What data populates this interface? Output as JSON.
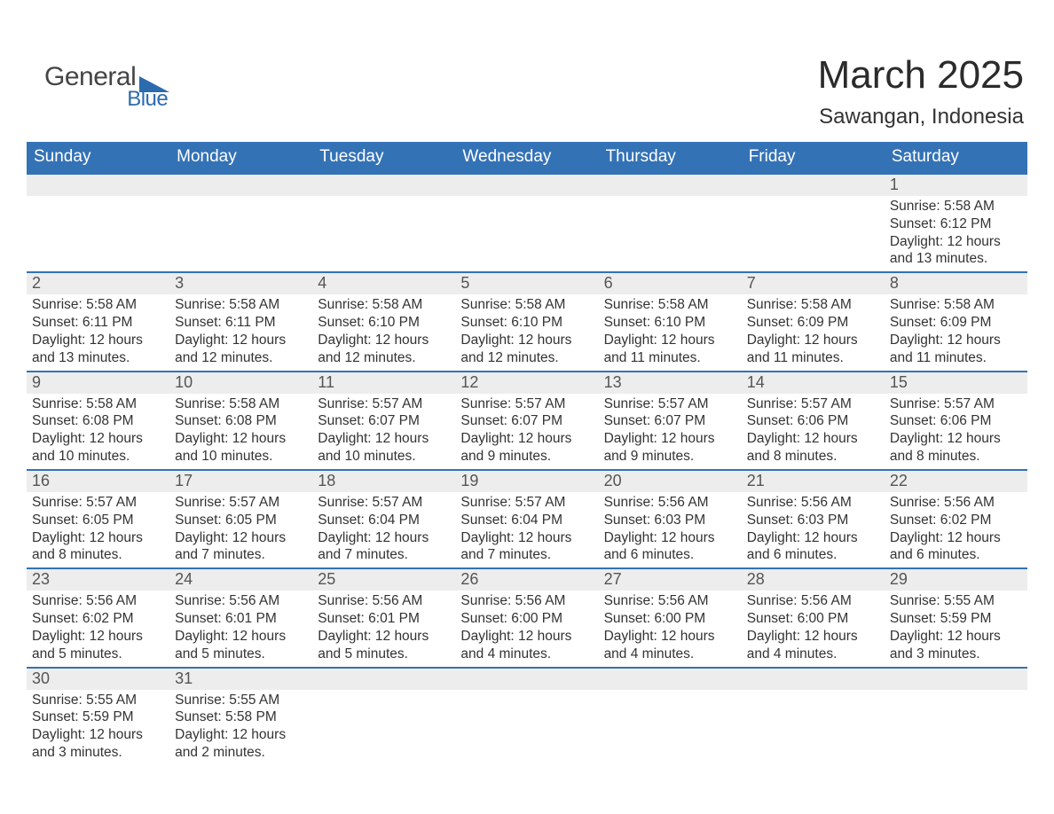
{
  "logo": {
    "text1": "General",
    "text2": "Blue"
  },
  "title": "March 2025",
  "location": "Sawangan, Indonesia",
  "colors": {
    "header_bg": "#3472b6",
    "header_text": "#ffffff",
    "strip_bg": "#ededed",
    "strip_border": "#3472b6",
    "body_text": "#333333",
    "logo_gray": "#454545",
    "logo_blue": "#2c6bad",
    "page_bg": "#ffffff"
  },
  "day_headers": [
    "Sunday",
    "Monday",
    "Tuesday",
    "Wednesday",
    "Thursday",
    "Friday",
    "Saturday"
  ],
  "weeks": [
    [
      {
        "empty": true
      },
      {
        "empty": true
      },
      {
        "empty": true
      },
      {
        "empty": true
      },
      {
        "empty": true
      },
      {
        "empty": true
      },
      {
        "day": "1",
        "sunrise": "Sunrise: 5:58 AM",
        "sunset": "Sunset: 6:12 PM",
        "daylight1": "Daylight: 12 hours",
        "daylight2": "and 13 minutes."
      }
    ],
    [
      {
        "day": "2",
        "sunrise": "Sunrise: 5:58 AM",
        "sunset": "Sunset: 6:11 PM",
        "daylight1": "Daylight: 12 hours",
        "daylight2": "and 13 minutes."
      },
      {
        "day": "3",
        "sunrise": "Sunrise: 5:58 AM",
        "sunset": "Sunset: 6:11 PM",
        "daylight1": "Daylight: 12 hours",
        "daylight2": "and 12 minutes."
      },
      {
        "day": "4",
        "sunrise": "Sunrise: 5:58 AM",
        "sunset": "Sunset: 6:10 PM",
        "daylight1": "Daylight: 12 hours",
        "daylight2": "and 12 minutes."
      },
      {
        "day": "5",
        "sunrise": "Sunrise: 5:58 AM",
        "sunset": "Sunset: 6:10 PM",
        "daylight1": "Daylight: 12 hours",
        "daylight2": "and 12 minutes."
      },
      {
        "day": "6",
        "sunrise": "Sunrise: 5:58 AM",
        "sunset": "Sunset: 6:10 PM",
        "daylight1": "Daylight: 12 hours",
        "daylight2": "and 11 minutes."
      },
      {
        "day": "7",
        "sunrise": "Sunrise: 5:58 AM",
        "sunset": "Sunset: 6:09 PM",
        "daylight1": "Daylight: 12 hours",
        "daylight2": "and 11 minutes."
      },
      {
        "day": "8",
        "sunrise": "Sunrise: 5:58 AM",
        "sunset": "Sunset: 6:09 PM",
        "daylight1": "Daylight: 12 hours",
        "daylight2": "and 11 minutes."
      }
    ],
    [
      {
        "day": "9",
        "sunrise": "Sunrise: 5:58 AM",
        "sunset": "Sunset: 6:08 PM",
        "daylight1": "Daylight: 12 hours",
        "daylight2": "and 10 minutes."
      },
      {
        "day": "10",
        "sunrise": "Sunrise: 5:58 AM",
        "sunset": "Sunset: 6:08 PM",
        "daylight1": "Daylight: 12 hours",
        "daylight2": "and 10 minutes."
      },
      {
        "day": "11",
        "sunrise": "Sunrise: 5:57 AM",
        "sunset": "Sunset: 6:07 PM",
        "daylight1": "Daylight: 12 hours",
        "daylight2": "and 10 minutes."
      },
      {
        "day": "12",
        "sunrise": "Sunrise: 5:57 AM",
        "sunset": "Sunset: 6:07 PM",
        "daylight1": "Daylight: 12 hours",
        "daylight2": "and 9 minutes."
      },
      {
        "day": "13",
        "sunrise": "Sunrise: 5:57 AM",
        "sunset": "Sunset: 6:07 PM",
        "daylight1": "Daylight: 12 hours",
        "daylight2": "and 9 minutes."
      },
      {
        "day": "14",
        "sunrise": "Sunrise: 5:57 AM",
        "sunset": "Sunset: 6:06 PM",
        "daylight1": "Daylight: 12 hours",
        "daylight2": "and 8 minutes."
      },
      {
        "day": "15",
        "sunrise": "Sunrise: 5:57 AM",
        "sunset": "Sunset: 6:06 PM",
        "daylight1": "Daylight: 12 hours",
        "daylight2": "and 8 minutes."
      }
    ],
    [
      {
        "day": "16",
        "sunrise": "Sunrise: 5:57 AM",
        "sunset": "Sunset: 6:05 PM",
        "daylight1": "Daylight: 12 hours",
        "daylight2": "and 8 minutes."
      },
      {
        "day": "17",
        "sunrise": "Sunrise: 5:57 AM",
        "sunset": "Sunset: 6:05 PM",
        "daylight1": "Daylight: 12 hours",
        "daylight2": "and 7 minutes."
      },
      {
        "day": "18",
        "sunrise": "Sunrise: 5:57 AM",
        "sunset": "Sunset: 6:04 PM",
        "daylight1": "Daylight: 12 hours",
        "daylight2": "and 7 minutes."
      },
      {
        "day": "19",
        "sunrise": "Sunrise: 5:57 AM",
        "sunset": "Sunset: 6:04 PM",
        "daylight1": "Daylight: 12 hours",
        "daylight2": "and 7 minutes."
      },
      {
        "day": "20",
        "sunrise": "Sunrise: 5:56 AM",
        "sunset": "Sunset: 6:03 PM",
        "daylight1": "Daylight: 12 hours",
        "daylight2": "and 6 minutes."
      },
      {
        "day": "21",
        "sunrise": "Sunrise: 5:56 AM",
        "sunset": "Sunset: 6:03 PM",
        "daylight1": "Daylight: 12 hours",
        "daylight2": "and 6 minutes."
      },
      {
        "day": "22",
        "sunrise": "Sunrise: 5:56 AM",
        "sunset": "Sunset: 6:02 PM",
        "daylight1": "Daylight: 12 hours",
        "daylight2": "and 6 minutes."
      }
    ],
    [
      {
        "day": "23",
        "sunrise": "Sunrise: 5:56 AM",
        "sunset": "Sunset: 6:02 PM",
        "daylight1": "Daylight: 12 hours",
        "daylight2": "and 5 minutes."
      },
      {
        "day": "24",
        "sunrise": "Sunrise: 5:56 AM",
        "sunset": "Sunset: 6:01 PM",
        "daylight1": "Daylight: 12 hours",
        "daylight2": "and 5 minutes."
      },
      {
        "day": "25",
        "sunrise": "Sunrise: 5:56 AM",
        "sunset": "Sunset: 6:01 PM",
        "daylight1": "Daylight: 12 hours",
        "daylight2": "and 5 minutes."
      },
      {
        "day": "26",
        "sunrise": "Sunrise: 5:56 AM",
        "sunset": "Sunset: 6:00 PM",
        "daylight1": "Daylight: 12 hours",
        "daylight2": "and 4 minutes."
      },
      {
        "day": "27",
        "sunrise": "Sunrise: 5:56 AM",
        "sunset": "Sunset: 6:00 PM",
        "daylight1": "Daylight: 12 hours",
        "daylight2": "and 4 minutes."
      },
      {
        "day": "28",
        "sunrise": "Sunrise: 5:56 AM",
        "sunset": "Sunset: 6:00 PM",
        "daylight1": "Daylight: 12 hours",
        "daylight2": "and 4 minutes."
      },
      {
        "day": "29",
        "sunrise": "Sunrise: 5:55 AM",
        "sunset": "Sunset: 5:59 PM",
        "daylight1": "Daylight: 12 hours",
        "daylight2": "and 3 minutes."
      }
    ],
    [
      {
        "day": "30",
        "sunrise": "Sunrise: 5:55 AM",
        "sunset": "Sunset: 5:59 PM",
        "daylight1": "Daylight: 12 hours",
        "daylight2": "and 3 minutes."
      },
      {
        "day": "31",
        "sunrise": "Sunrise: 5:55 AM",
        "sunset": "Sunset: 5:58 PM",
        "daylight1": "Daylight: 12 hours",
        "daylight2": "and 2 minutes."
      },
      {
        "empty": true
      },
      {
        "empty": true
      },
      {
        "empty": true
      },
      {
        "empty": true
      },
      {
        "empty": true
      }
    ]
  ]
}
